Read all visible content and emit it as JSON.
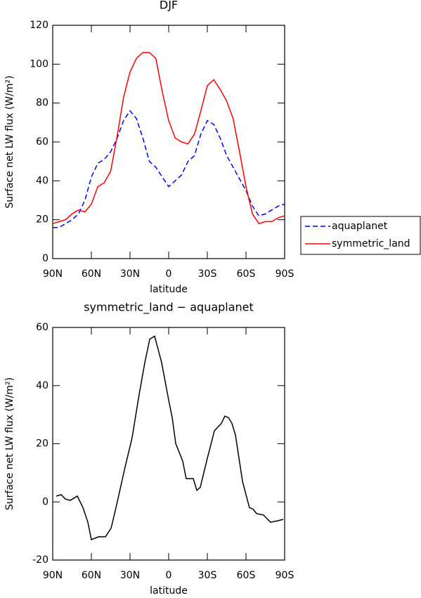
{
  "chart_data": [
    {
      "type": "line",
      "title": "DJF",
      "xlabel": "latitude",
      "ylabel": "Surface net LW flux (W/m²)",
      "x": [
        90,
        85,
        80,
        75,
        70,
        65,
        60,
        55,
        50,
        45,
        40,
        35,
        30,
        25,
        20,
        15,
        10,
        5,
        0,
        -5,
        -10,
        -15,
        -20,
        -25,
        -30,
        -35,
        -40,
        -45,
        -50,
        -55,
        -60,
        -65,
        -70,
        -75,
        -80,
        -85,
        -90
      ],
      "series": [
        {
          "name": "aquaplanet",
          "color": "#0000ff",
          "linestyle": "dashed",
          "values": [
            16,
            16,
            18,
            20,
            23,
            30,
            42,
            49,
            51,
            55,
            62,
            71,
            76,
            72,
            62,
            50,
            47,
            42,
            37,
            40,
            43,
            50,
            53,
            64,
            71,
            69,
            62,
            53,
            47,
            41,
            35,
            27,
            22,
            23,
            25,
            27,
            28
          ]
        },
        {
          "name": "symmetric_land",
          "color": "#ff0000",
          "linestyle": "solid",
          "values": [
            18,
            19,
            20,
            23,
            25,
            24,
            28,
            37,
            39,
            45,
            63,
            83,
            96,
            103,
            106,
            106,
            103,
            86,
            71,
            62,
            60,
            59,
            64,
            76,
            89,
            92,
            87,
            81,
            72,
            55,
            37,
            23,
            18,
            19,
            19,
            21,
            22
          ]
        }
      ],
      "xlim": [
        90,
        -90
      ],
      "xticks": [
        {
          "value": 90,
          "label": "90N"
        },
        {
          "value": 60,
          "label": "60N"
        },
        {
          "value": 30,
          "label": "30N"
        },
        0,
        {
          "value": -30,
          "label": "30S"
        },
        {
          "value": -60,
          "label": "60S"
        },
        {
          "value": -90,
          "label": "90S"
        }
      ],
      "ylim": [
        0,
        120
      ],
      "yticks": [
        0,
        20,
        40,
        60,
        80,
        100,
        120
      ],
      "legend": "outside right"
    },
    {
      "type": "line",
      "title": "symmetric_land − aquaplanet",
      "xlabel": "latitude",
      "ylabel": "Surface net LW flux (W/m²)",
      "x": [
        87.3,
        83.5,
        80.2,
        76.4,
        70.9,
        66.5,
        62.7,
        60,
        54.5,
        49.1,
        44.7,
        40.9,
        33.8,
        28.4,
        22.9,
        18.5,
        14.7,
        10.9,
        5.5,
        0,
        -2.7,
        -5.5,
        -10.9,
        -13.6,
        -19.1,
        -21.8,
        -24.5,
        -30,
        -35.5,
        -40.9,
        -43.6,
        -46.4,
        -49.1,
        -51.8,
        -57.3,
        -62.7,
        -65.5,
        -68.2,
        -73.6,
        -79.1,
        -84.5,
        -88.9
      ],
      "values": [
        2,
        2.5,
        1,
        0.5,
        2,
        -2,
        -7,
        -13,
        -12,
        -12,
        -9,
        -2,
        12,
        22,
        37,
        48,
        56,
        57,
        48,
        35,
        29,
        20,
        14,
        8,
        8,
        4,
        5,
        15,
        24.5,
        27,
        29.5,
        29,
        27,
        23,
        7,
        -2,
        -2.5,
        -4,
        -4.5,
        -7,
        -6.5,
        -6
      ],
      "color": "#000000",
      "xlim": [
        90,
        -90
      ],
      "xticks": [
        {
          "value": 90,
          "label": "90N"
        },
        {
          "value": 60,
          "label": "60N"
        },
        {
          "value": 30,
          "label": "30N"
        },
        0,
        {
          "value": -30,
          "label": "30S"
        },
        {
          "value": -60,
          "label": "60S"
        },
        {
          "value": -90,
          "label": "90S"
        }
      ],
      "ylim": [
        -20,
        60
      ],
      "yticks": [
        -20,
        0,
        20,
        40,
        60
      ]
    }
  ]
}
